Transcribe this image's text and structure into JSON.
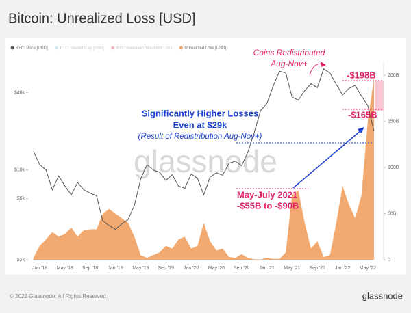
{
  "chart_data": {
    "type": "line-area",
    "title": "Bitcoin: Unrealized Loss [USD]",
    "categories": [
      null,
      "Jan '18",
      null,
      null,
      null,
      "May '18",
      null,
      null,
      null,
      "Sep '18",
      null,
      null,
      null,
      "Jan '19",
      null,
      null,
      null,
      "May '19",
      null,
      null,
      null,
      "Sep '19",
      null,
      null,
      null,
      "Jan '20",
      null,
      null,
      null,
      "May '20",
      null,
      null,
      null,
      "Sep '20",
      null,
      null,
      null,
      "Jan '21",
      null,
      null,
      null,
      "May '21",
      null,
      null,
      null,
      "Sep '21",
      null,
      null,
      null,
      "Jan '22",
      null,
      null,
      null,
      "May '22",
      null
    ],
    "series": [
      {
        "name": "BTC: Price [USD]",
        "color": "#555555",
        "axis": "y",
        "values": [
          14000,
          11000,
          10000,
          7000,
          9000,
          7500,
          6400,
          8000,
          7000,
          6600,
          6300,
          4000,
          3700,
          3450,
          3800,
          4100,
          5300,
          8500,
          11000,
          10000,
          9600,
          8300,
          9200,
          7500,
          7200,
          9300,
          8600,
          6400,
          8800,
          9500,
          9100,
          11300,
          11700,
          10800,
          13800,
          19600,
          29000,
          33000,
          45000,
          58800,
          57000,
          37000,
          35000,
          41500,
          47000,
          43800,
          61300,
          57000,
          46300,
          38500,
          43200,
          45500,
          37700,
          31800,
          20000
        ]
      },
      {
        "name": "Unrealized Loss [USD]",
        "color": "#f0a060",
        "axis": "y2",
        "values": [
          2,
          15,
          22,
          30,
          25,
          28,
          35,
          25,
          32,
          33,
          33,
          50,
          55,
          50,
          45,
          40,
          25,
          5,
          2,
          5,
          8,
          15,
          12,
          22,
          25,
          12,
          15,
          40,
          20,
          10,
          12,
          3,
          2,
          6,
          2,
          0.5,
          0.2,
          2,
          1,
          1,
          8,
          70,
          75,
          40,
          12,
          20,
          3,
          5,
          40,
          80,
          60,
          45,
          70,
          150,
          198
        ]
      }
    ],
    "hidden_series": [
      {
        "name": "BTC: Market Cap [USD]",
        "color": "#8ecae6"
      },
      {
        "name": "BTC: Relative Unrealized Loss",
        "color": "#e8506a"
      }
    ],
    "log_scale": true,
    "ylim": [
      2000,
      70000
    ],
    "yticks": [
      {
        "value": 2000,
        "label": "$2k"
      },
      {
        "value": 6000,
        "label": "$6k"
      },
      {
        "value": 10000,
        "label": "$10k"
      },
      {
        "value": 40000,
        "label": "$40k"
      }
    ],
    "y2lim": [
      0,
      215
    ],
    "y2ticks": [
      0,
      {
        "value": 50,
        "label": "50B"
      },
      {
        "value": 100,
        "label": "100B"
      },
      {
        "value": 150,
        "label": "150B"
      },
      {
        "value": 200,
        "label": "200B"
      }
    ],
    "annotations": {
      "coins_1": "Coins Redistributed",
      "coins_2": "Aug-Nov+",
      "loss_top": "-$198B",
      "loss_low": "-$165B",
      "higher_1": "Significantly Higher Losses",
      "higher_2": "Even at $29k",
      "result": "(Result of Redistribution Aug-Nov+)",
      "may_1": "May-July 2021",
      "may_2": "-$55B to -$90B"
    },
    "watermark": "glassnode",
    "footer": "© 2022 Glassnode. All Rights Reserved.",
    "brand": "glassnode"
  }
}
